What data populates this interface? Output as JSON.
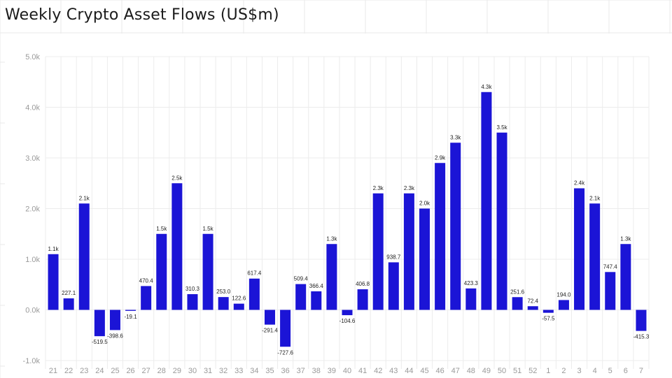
{
  "title": "Weekly Crypto Asset Flows (US$m)",
  "colors": {
    "bar": "#1b14d6",
    "grid": "#ececec",
    "background_grid": "#e9e9e9",
    "tick_text": "#9a9a9a"
  },
  "chart_data": {
    "type": "bar",
    "title": "Weekly Crypto Asset Flows (US$m)",
    "xlabel": "",
    "ylabel": "",
    "ylim": [
      -1000,
      5000
    ],
    "yticks": [
      -1000,
      0,
      1000,
      2000,
      3000,
      4000,
      5000
    ],
    "ytick_labels": [
      "-1.0k",
      "0.0k",
      "1.0k",
      "2.0k",
      "3.0k",
      "4.0k",
      "5.0k"
    ],
    "grid": true,
    "categories": [
      "21",
      "22",
      "23",
      "24",
      "25",
      "26",
      "27",
      "28",
      "29",
      "30",
      "31",
      "32",
      "33",
      "34",
      "35",
      "36",
      "37",
      "38",
      "39",
      "40",
      "41",
      "42",
      "43",
      "44",
      "45",
      "46",
      "47",
      "48",
      "49",
      "50",
      "51",
      "52",
      "1",
      "2",
      "3",
      "4",
      "5",
      "6",
      "7"
    ],
    "values": [
      1100,
      227.1,
      2100,
      -519.5,
      -398.6,
      -19.1,
      470.4,
      1500,
      2500,
      310.3,
      1500,
      253.0,
      122.6,
      617.4,
      -291.4,
      -727.6,
      509.4,
      366.4,
      1300,
      -104.6,
      406.8,
      2300,
      938.7,
      2300,
      2000,
      2900,
      3300,
      423.3,
      4300,
      3500,
      251.6,
      72.4,
      -57.5,
      194.0,
      2400,
      2100,
      747.4,
      1300,
      -415.3
    ],
    "data_labels": [
      "1.1k",
      "227.1",
      "2.1k",
      "-519.5",
      "-398.6",
      "-19.1",
      "470.4",
      "1.5k",
      "2.5k",
      "310.3",
      "1.5k",
      "253.0",
      "122.6",
      "617.4",
      "-291.4",
      "-727.6",
      "509.4",
      "366.4",
      "1.3k",
      "-104.6",
      "406.8",
      "2.3k",
      "938.7",
      "2.3k",
      "2.0k",
      "2.9k",
      "3.3k",
      "423.3",
      "4.3k",
      "3.5k",
      "251.6",
      "72.4",
      "-57.5",
      "194.0",
      "2.4k",
      "2.1k",
      "747.4",
      "1.3k",
      "-415.3"
    ]
  }
}
